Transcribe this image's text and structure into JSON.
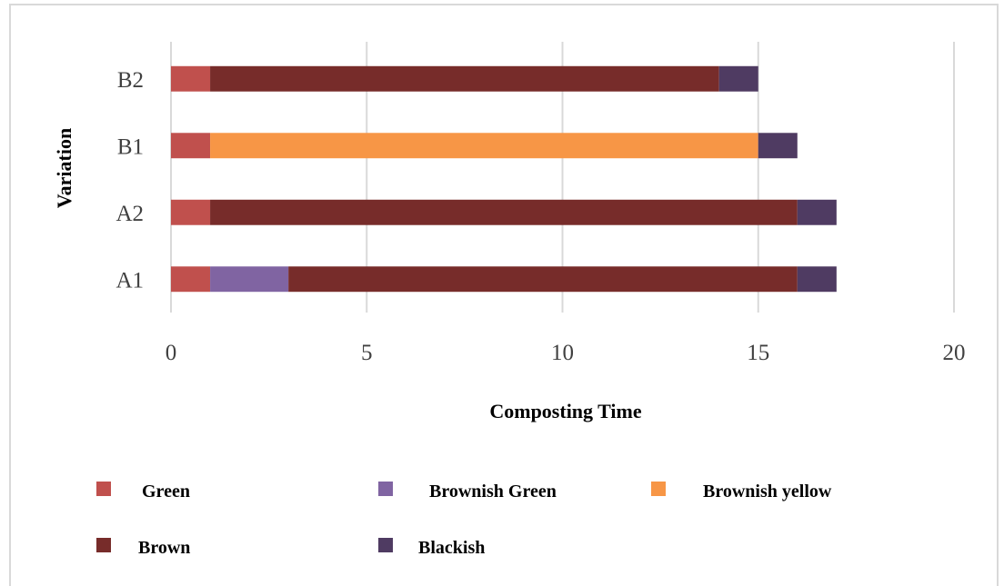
{
  "chart_data": {
    "type": "bar",
    "orientation": "horizontal",
    "stacked": true,
    "title": "",
    "xlabel": "Composting Time",
    "ylabel": "Variation",
    "xlim": [
      0,
      20
    ],
    "xticks": [
      0,
      5,
      10,
      15,
      20
    ],
    "categories": [
      "A1",
      "A2",
      "B1",
      "B2"
    ],
    "series": [
      {
        "name": "Green",
        "color": "#c0504d",
        "values": [
          1,
          1,
          1,
          1
        ]
      },
      {
        "name": "Brownish Green",
        "color": "#8064a2",
        "values": [
          2,
          0,
          0,
          0
        ]
      },
      {
        "name": "Brownish yellow",
        "color": "#f79646",
        "values": [
          0,
          0,
          14,
          0
        ]
      },
      {
        "name": "Brown",
        "color": "#772c2a",
        "values": [
          13,
          15,
          0,
          13
        ]
      },
      {
        "name": "Blackish",
        "color": "#4f3b62",
        "values": [
          1,
          1,
          1,
          1
        ]
      }
    ],
    "grid": true,
    "legend_position": "bottom"
  }
}
